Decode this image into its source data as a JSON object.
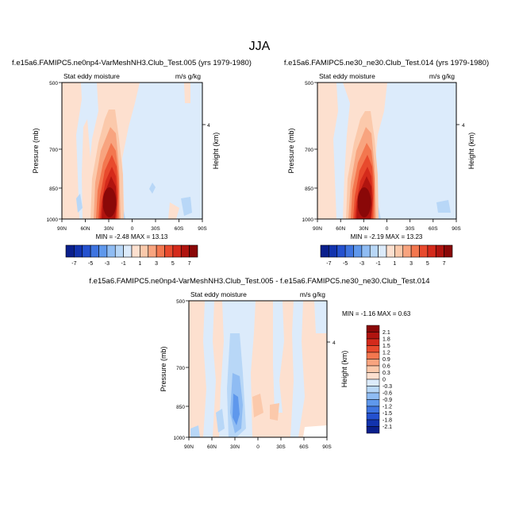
{
  "figure": {
    "title": "JJA"
  },
  "colors": {
    "positive": [
      "#fde0cf",
      "#fbc9ab",
      "#f8a47f",
      "#f3774f",
      "#e84a2d",
      "#d42a1b",
      "#b0140f",
      "#8a0808"
    ],
    "negative": [
      "#dcebfb",
      "#b8d7f7",
      "#8fbcf3",
      "#5f98ec",
      "#3e74e0",
      "#2451cf",
      "#1233ae",
      "#0a1f8c"
    ]
  },
  "colorbar_main": {
    "labels": [
      "-7",
      "-5",
      "-3",
      "-1",
      "1",
      "3",
      "5",
      "7"
    ],
    "colors": [
      "#0a1f8c",
      "#1233ae",
      "#2451cf",
      "#3e74e0",
      "#5f98ec",
      "#8fbcf3",
      "#b8d7f7",
      "#dcebfb",
      "#fde0cf",
      "#fbc9ab",
      "#f8a47f",
      "#f3774f",
      "#e84a2d",
      "#d42a1b",
      "#b0140f",
      "#8a0808"
    ]
  },
  "colorbar_diff": {
    "labels": [
      "2.1",
      "1.8",
      "1.5",
      "1.2",
      "0.9",
      "0.6",
      "0.3",
      "0",
      "-0.3",
      "-0.6",
      "-0.9",
      "-1.2",
      "-1.5",
      "-1.8",
      "-2.1"
    ],
    "colors": [
      "#8a0808",
      "#b0140f",
      "#d42a1b",
      "#e84a2d",
      "#f3774f",
      "#f8a47f",
      "#fbc9ab",
      "#fde0cf",
      "#dcebfb",
      "#b8d7f7",
      "#8fbcf3",
      "#5f98ec",
      "#3e74e0",
      "#2451cf",
      "#1233ae",
      "#0a1f8c"
    ]
  },
  "chart_data": [
    {
      "type": "heatmap",
      "title": "f.e15a6.FAMIPC5.ne0np4-VarMeshNH3.Club_Test.005 (yrs 1979-1980)",
      "left_string": "Stat eddy moisture",
      "right_string": "m/s g/kg",
      "ylabel": "Pressure (mb)",
      "ylabel_right": "Height (km)",
      "x_ticks": [
        "90N",
        "60N",
        "30N",
        "0",
        "30S",
        "60S",
        "90S"
      ],
      "y_ticks": [
        "500",
        "700",
        "850",
        "1000"
      ],
      "y_right_ticks": [
        "4"
      ],
      "min": "-2.48",
      "max": "13.13",
      "min_max_label": "MIN =  -2.48  MAX =  13.13"
    },
    {
      "type": "heatmap",
      "title": "f.e15a6.FAMIPC5.ne30_ne30.Club_Test.014 (yrs 1979-1980)",
      "left_string": "Stat eddy moisture",
      "right_string": "m/s g/kg",
      "ylabel": "Pressure (mb)",
      "ylabel_right": "Height (km)",
      "x_ticks": [
        "90N",
        "60N",
        "30N",
        "0",
        "30S",
        "60S",
        "90S"
      ],
      "y_ticks": [
        "500",
        "700",
        "850",
        "1000"
      ],
      "y_right_ticks": [
        "4"
      ],
      "min": "-2.19",
      "max": "13.23",
      "min_max_label": "MIN =  -2.19  MAX =  13.23"
    },
    {
      "type": "heatmap",
      "title": "f.e15a6.FAMIPC5.ne0np4-VarMeshNH3.Club_Test.005 - f.e15a6.FAMIPC5.ne30_ne30.Club_Test.014",
      "left_string": "Stat eddy moisture",
      "right_string": "m/s g/kg",
      "ylabel": "Pressure (mb)",
      "ylabel_right": "Height (km)",
      "x_ticks": [
        "90N",
        "60N",
        "30N",
        "0",
        "30S",
        "60S",
        "90S"
      ],
      "y_ticks": [
        "500",
        "700",
        "850",
        "1000"
      ],
      "y_right_ticks": [
        "4"
      ],
      "min": "-1.16",
      "max": "0.63",
      "min_max_label": "MIN =  -1.16  MAX =   0.63"
    }
  ]
}
